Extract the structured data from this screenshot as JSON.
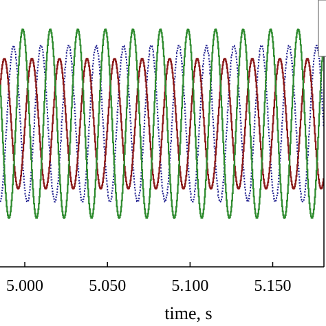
{
  "chart_data": {
    "type": "line",
    "title": "",
    "xlabel": "time, s",
    "ylabel": "",
    "xlim": [
      5.0,
      5.18
    ],
    "ylim": [
      -1.6,
      1.6
    ],
    "x_ticks": [
      5.0,
      5.05,
      5.1,
      5.15
    ],
    "x_tick_labels": [
      "5.000",
      "5.050",
      "5.100",
      "5.150"
    ],
    "grid": false,
    "legend": "top-right",
    "frequency_hz": 60,
    "sample_step_s": 0.00033,
    "series": [
      {
        "amplitude": 1.2,
        "phase_deg": 240,
        "color": "#1f1f8f",
        "style": "dotted"
      },
      {
        "amplitude": 1.0,
        "phase_deg": 0,
        "color": "#8b1a1a",
        "style": "solid"
      },
      {
        "amplitude": 1.45,
        "phase_deg": 120,
        "color": "#2e8b2e",
        "style": "solid"
      }
    ]
  }
}
